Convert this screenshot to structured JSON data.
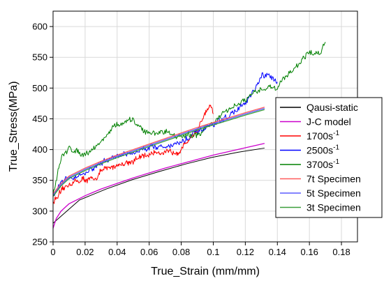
{
  "chart_data": {
    "type": "line",
    "xlabel": "True_Strain (mm/mm)",
    "ylabel": "True_Stress(MPa)",
    "xlim": [
      0,
      0.19
    ],
    "ylim": [
      250,
      625
    ],
    "x_ticks": [
      0,
      0.02,
      0.04,
      0.06,
      0.08,
      0.1,
      0.12,
      0.14,
      0.16,
      0.18
    ],
    "x_tick_labels": [
      "0",
      "0.02",
      "0.04",
      "0.06",
      "0.08",
      "0.1",
      "0.12",
      "0.14",
      "0.16",
      "0.18"
    ],
    "y_ticks": [
      250,
      300,
      350,
      400,
      450,
      500,
      550,
      600
    ],
    "y_tick_labels": [
      "250",
      "300",
      "350",
      "400",
      "450",
      "500",
      "550",
      "600"
    ],
    "grid": true,
    "legend_position": "right",
    "series": [
      {
        "name": "Qausi-static",
        "color": "#000000",
        "noise": 1.5,
        "jitter": 8,
        "points": [
          [
            0,
            280
          ],
          [
            0.005,
            303
          ],
          [
            0.01,
            312
          ],
          [
            0.02,
            322
          ],
          [
            0.03,
            333
          ],
          [
            0.04,
            343
          ],
          [
            0.05,
            352
          ],
          [
            0.06,
            360
          ],
          [
            0.07,
            368
          ],
          [
            0.08,
            375
          ],
          [
            0.09,
            382
          ],
          [
            0.1,
            388
          ],
          [
            0.11,
            393
          ],
          [
            0.12,
            398
          ],
          [
            0.13,
            401
          ],
          [
            0.132,
            402
          ]
        ]
      },
      {
        "name": "J-C model",
        "color": "#cc00cc",
        "noise": 0,
        "points": [
          [
            0,
            272
          ],
          [
            0.002,
            288
          ],
          [
            0.005,
            300
          ],
          [
            0.01,
            312
          ],
          [
            0.02,
            325
          ],
          [
            0.03,
            336
          ],
          [
            0.04,
            345
          ],
          [
            0.05,
            354
          ],
          [
            0.06,
            362
          ],
          [
            0.07,
            370
          ],
          [
            0.08,
            377
          ],
          [
            0.09,
            384
          ],
          [
            0.1,
            391
          ],
          [
            0.11,
            397
          ],
          [
            0.12,
            403
          ],
          [
            0.132,
            410
          ]
        ]
      },
      {
        "name": "1700s-1",
        "color": "#ff0000",
        "noise": 6,
        "jitter": 300,
        "points": [
          [
            0,
            315
          ],
          [
            0.005,
            330
          ],
          [
            0.01,
            345
          ],
          [
            0.02,
            352
          ],
          [
            0.025,
            350
          ],
          [
            0.03,
            365
          ],
          [
            0.04,
            375
          ],
          [
            0.05,
            382
          ],
          [
            0.06,
            392
          ],
          [
            0.065,
            398
          ],
          [
            0.07,
            393
          ],
          [
            0.08,
            400
          ],
          [
            0.085,
            418
          ],
          [
            0.09,
            430
          ],
          [
            0.095,
            458
          ],
          [
            0.098,
            470
          ],
          [
            0.1,
            455
          ]
        ]
      },
      {
        "name": "2500s-1",
        "color": "#0000ff",
        "noise": 6,
        "jitter": 320,
        "points": [
          [
            0,
            325
          ],
          [
            0.005,
            345
          ],
          [
            0.01,
            355
          ],
          [
            0.02,
            362
          ],
          [
            0.03,
            378
          ],
          [
            0.04,
            390
          ],
          [
            0.05,
            395
          ],
          [
            0.06,
            405
          ],
          [
            0.07,
            405
          ],
          [
            0.08,
            412
          ],
          [
            0.09,
            428
          ],
          [
            0.1,
            440
          ],
          [
            0.11,
            455
          ],
          [
            0.12,
            475
          ],
          [
            0.125,
            492
          ],
          [
            0.13,
            518
          ],
          [
            0.135,
            520
          ],
          [
            0.14,
            510
          ]
        ]
      },
      {
        "name": "3700s-1",
        "color": "#008000",
        "noise": 6,
        "jitter": 380,
        "points": [
          [
            0,
            330
          ],
          [
            0.005,
            385
          ],
          [
            0.01,
            402
          ],
          [
            0.02,
            393
          ],
          [
            0.03,
            412
          ],
          [
            0.035,
            430
          ],
          [
            0.04,
            440
          ],
          [
            0.05,
            447
          ],
          [
            0.055,
            435
          ],
          [
            0.06,
            425
          ],
          [
            0.07,
            430
          ],
          [
            0.08,
            420
          ],
          [
            0.09,
            425
          ],
          [
            0.1,
            445
          ],
          [
            0.11,
            465
          ],
          [
            0.12,
            480
          ],
          [
            0.13,
            498
          ],
          [
            0.135,
            503
          ],
          [
            0.14,
            500
          ],
          [
            0.145,
            520
          ],
          [
            0.15,
            530
          ],
          [
            0.155,
            545
          ],
          [
            0.16,
            558
          ],
          [
            0.165,
            555
          ],
          [
            0.17,
            572
          ]
        ]
      },
      {
        "name": "7t Specimen",
        "color": "#ff5c5c",
        "noise": 0,
        "points": [
          [
            0,
            328
          ],
          [
            0.005,
            345
          ],
          [
            0.01,
            357
          ],
          [
            0.02,
            370
          ],
          [
            0.03,
            381
          ],
          [
            0.04,
            391
          ],
          [
            0.05,
            400
          ],
          [
            0.06,
            409
          ],
          [
            0.07,
            418
          ],
          [
            0.08,
            427
          ],
          [
            0.09,
            436
          ],
          [
            0.1,
            444
          ],
          [
            0.11,
            452
          ],
          [
            0.12,
            460
          ],
          [
            0.132,
            469
          ]
        ]
      },
      {
        "name": "5t Specimen",
        "color": "#5c5cff",
        "noise": 0,
        "points": [
          [
            0,
            326
          ],
          [
            0.005,
            343
          ],
          [
            0.01,
            355
          ],
          [
            0.02,
            368
          ],
          [
            0.03,
            379
          ],
          [
            0.04,
            389
          ],
          [
            0.05,
            398
          ],
          [
            0.06,
            407
          ],
          [
            0.07,
            416
          ],
          [
            0.08,
            425
          ],
          [
            0.09,
            434
          ],
          [
            0.1,
            442
          ],
          [
            0.11,
            450
          ],
          [
            0.12,
            458
          ],
          [
            0.132,
            467
          ]
        ]
      },
      {
        "name": "3t Specimen",
        "color": "#3a9e3a",
        "noise": 0,
        "points": [
          [
            0,
            324
          ],
          [
            0.005,
            341
          ],
          [
            0.01,
            353
          ],
          [
            0.02,
            366
          ],
          [
            0.03,
            377
          ],
          [
            0.04,
            387
          ],
          [
            0.05,
            396
          ],
          [
            0.06,
            405
          ],
          [
            0.07,
            414
          ],
          [
            0.08,
            423
          ],
          [
            0.09,
            432
          ],
          [
            0.1,
            440
          ],
          [
            0.11,
            448
          ],
          [
            0.12,
            456
          ],
          [
            0.132,
            465
          ]
        ]
      }
    ],
    "legend_entries": [
      {
        "label": "Qausi-static",
        "sup": "",
        "color": "#000000"
      },
      {
        "label": "J-C model",
        "sup": "",
        "color": "#cc00cc"
      },
      {
        "label": "1700s",
        "sup": "-1",
        "color": "#ff0000"
      },
      {
        "label": "2500s",
        "sup": "-1",
        "color": "#0000ff"
      },
      {
        "label": "3700s",
        "sup": "-1",
        "color": "#008000"
      },
      {
        "label": "7t Specimen",
        "sup": "",
        "color": "#ff5c5c"
      },
      {
        "label": "5t Specimen",
        "sup": "",
        "color": "#5c5cff"
      },
      {
        "label": "3t Specimen",
        "sup": "",
        "color": "#3a9e3a"
      }
    ]
  }
}
